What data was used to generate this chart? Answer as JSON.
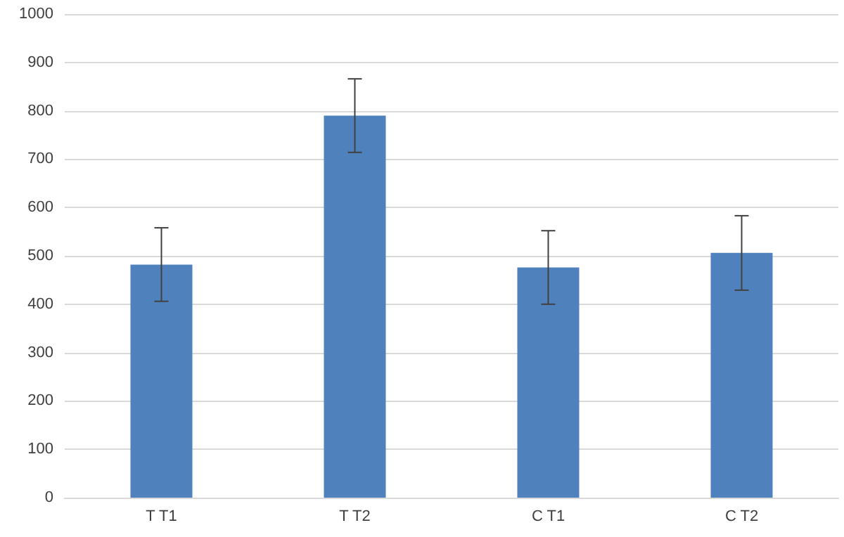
{
  "chart_data": {
    "type": "bar",
    "categories": [
      "T T1",
      "T T2",
      "C T1",
      "C T2"
    ],
    "values": [
      482,
      790,
      476,
      506
    ],
    "errors": [
      76,
      76,
      76,
      77
    ],
    "color": "#4f81bd",
    "ylim": [
      0,
      1000
    ],
    "yticks": [
      0,
      100,
      200,
      300,
      400,
      500,
      600,
      700,
      800,
      900,
      1000
    ],
    "grid": "y"
  }
}
